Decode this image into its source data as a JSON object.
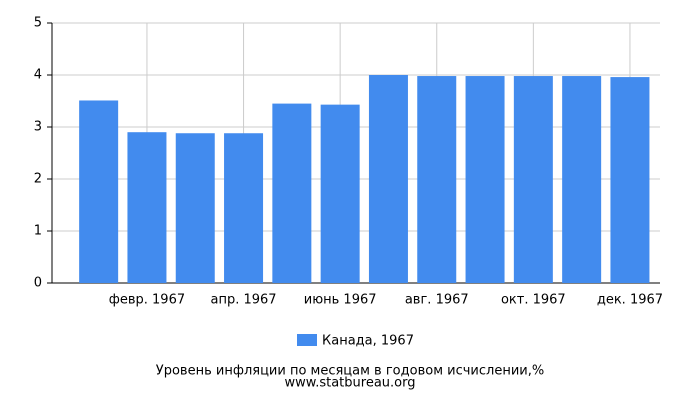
{
  "chart_data": {
    "type": "bar",
    "categories": [
      null,
      "февр. 1967",
      null,
      "апр. 1967",
      null,
      "июнь 1967",
      null,
      "авг. 1967",
      null,
      "окт. 1967",
      null,
      "дек. 1967"
    ],
    "series": [
      {
        "name": "Канада, 1967",
        "color": "#428bee",
        "values": [
          3.51,
          2.9,
          2.88,
          2.88,
          3.45,
          3.43,
          4.0,
          3.98,
          3.98,
          3.98,
          3.98,
          3.96
        ]
      }
    ],
    "ylim": [
      0,
      5
    ],
    "yticks": [
      0,
      1,
      2,
      3,
      4,
      5
    ],
    "grid": true,
    "title": "Уровень инфляции по месяцам в годовом исчислении,%",
    "source": "www.statbureau.org"
  }
}
